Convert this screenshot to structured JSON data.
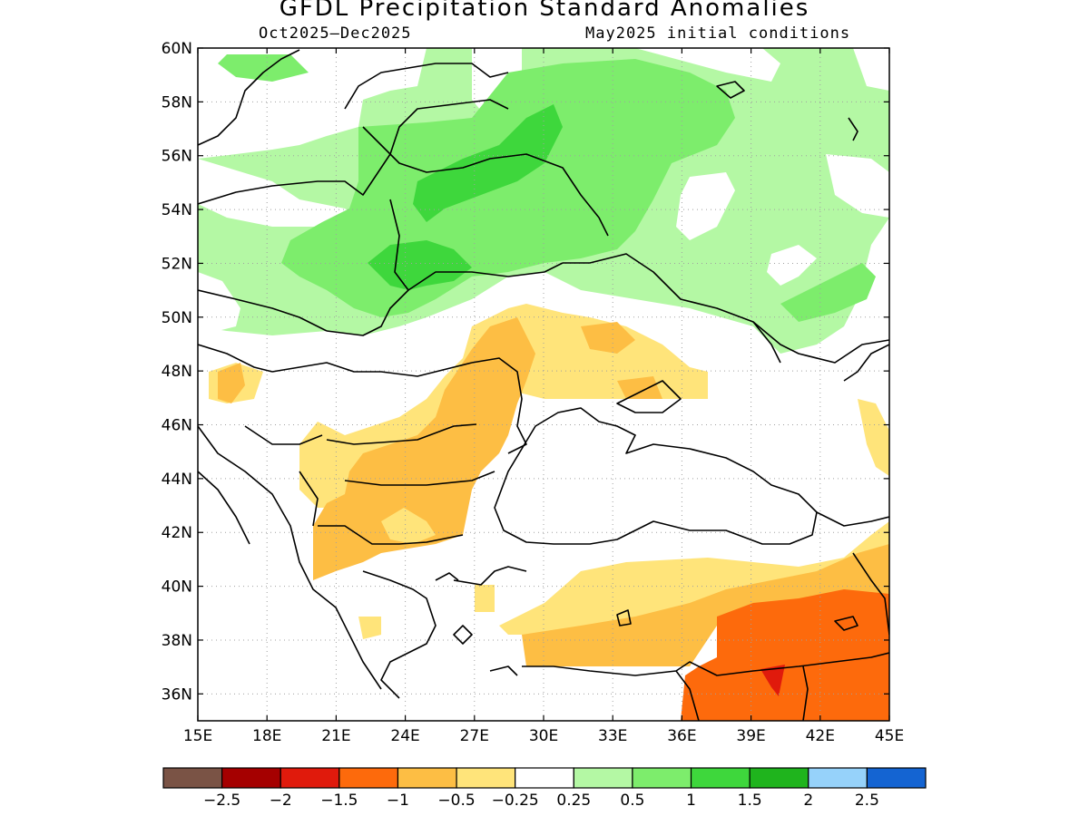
{
  "title": "GFDL Precipitation Standard Anomalies",
  "subtitle_left": "Oct2025–Dec2025",
  "subtitle_right": "May2025 initial conditions",
  "map": {
    "lon_range": [
      15,
      45
    ],
    "lat_range": [
      35,
      60
    ],
    "lon_ticks": [
      "15E",
      "18E",
      "21E",
      "24E",
      "27E",
      "30E",
      "33E",
      "36E",
      "39E",
      "42E",
      "45E"
    ],
    "lat_ticks": [
      "36N",
      "38N",
      "40N",
      "42N",
      "44N",
      "46N",
      "48N",
      "50N",
      "52N",
      "54N",
      "56N",
      "58N",
      "60N"
    ],
    "gridlines": "dotted"
  },
  "colorbar": {
    "colors": [
      "#7a5345",
      "#a50000",
      "#e01a0c",
      "#fd6a0c",
      "#fdbe44",
      "#ffe47a",
      "#ffffff",
      "#b4f8a4",
      "#7ded6c",
      "#3ed73c",
      "#1fb41d",
      "#96d2fa",
      "#1464d2"
    ],
    "labels": [
      "−2.5",
      "−2",
      "−1.5",
      "−1",
      "−0.5",
      "−0.25",
      "0.25",
      "0.5",
      "1",
      "1.5",
      "2",
      "2.5"
    ]
  },
  "palette": {
    "light_green": "#b4f8a4",
    "green": "#7ded6c",
    "dark_green": "#3ed73c",
    "light_orange": "#ffe47a",
    "orange": "#fdbe44",
    "dark_orange": "#fd6a0c",
    "red": "#e01a0c"
  }
}
